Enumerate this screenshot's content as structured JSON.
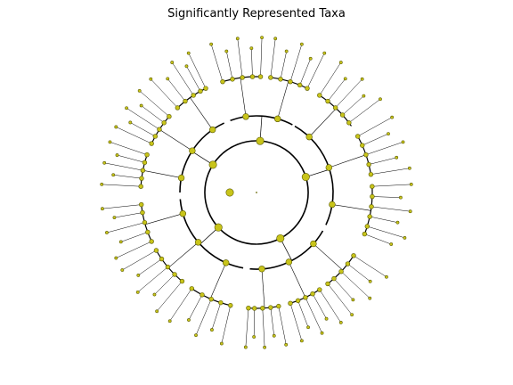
{
  "title": "Significantly Represented Taxa",
  "colors": {
    "node_fill": "#c8c41a",
    "node_stroke": "#5a5a00",
    "branch": "#000000",
    "background": "#ffffff"
  },
  "chart_data": {
    "type": "cladogram",
    "layout": "circular",
    "title": "Significantly Represented Taxa",
    "levels": 4,
    "highlighted_nodes": "none",
    "node_color": "#c8c41a"
  }
}
